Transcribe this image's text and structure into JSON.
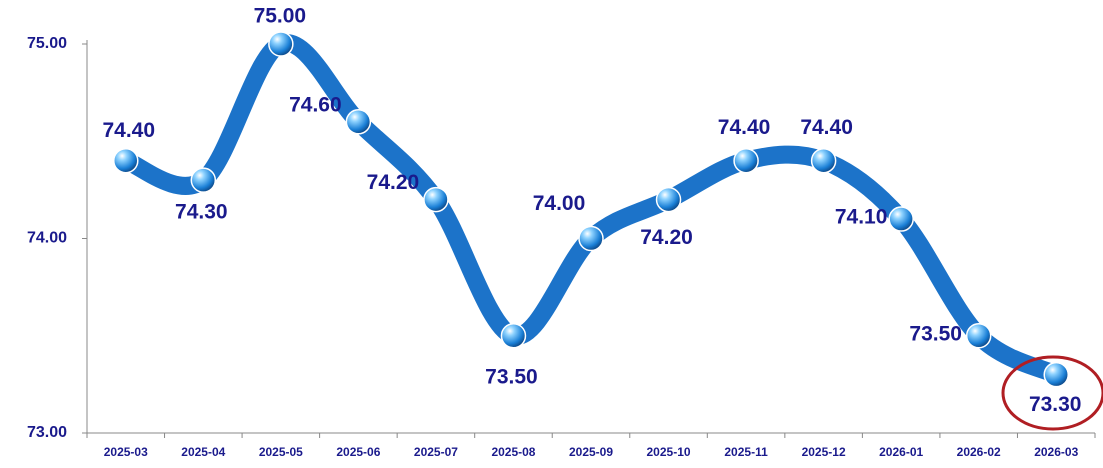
{
  "chart_data": {
    "type": "line",
    "categories": [
      "2025-03",
      "2025-04",
      "2025-05",
      "2025-06",
      "2025-07",
      "2025-08",
      "2025-09",
      "2025-10",
      "2025-11",
      "2025-12",
      "2026-01",
      "2026-02",
      "2026-03"
    ],
    "values": [
      74.4,
      74.3,
      75.0,
      74.6,
      74.2,
      73.5,
      74.0,
      74.2,
      74.4,
      74.4,
      74.1,
      73.5,
      73.3
    ],
    "value_labels": [
      "74.40",
      "74.30",
      "75.00",
      "74.60",
      "74.20",
      "73.50",
      "74.00",
      "74.20",
      "74.40",
      "74.40",
      "74.10",
      "73.50",
      "73.30"
    ],
    "color": "#1c73c9",
    "ylim": [
      73.0,
      75.0
    ],
    "yticks": [
      {
        "value": 73,
        "label": "73.00"
      },
      {
        "value": 74,
        "label": "74.00"
      },
      {
        "value": 75,
        "label": "75.00"
      }
    ],
    "grid": false
  }
}
